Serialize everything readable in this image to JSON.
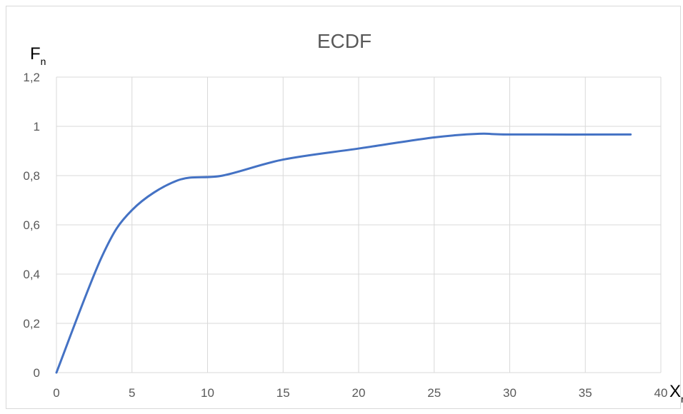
{
  "chart_data": {
    "type": "line",
    "title": "ECDF",
    "ylabel": {
      "main": "F",
      "sub": "n"
    },
    "xlabel": {
      "main": "X",
      "sub": "n"
    },
    "xlim": [
      0,
      40
    ],
    "ylim": [
      0,
      1.2
    ],
    "x_ticks": [
      0,
      5,
      10,
      15,
      20,
      25,
      30,
      35,
      40
    ],
    "x_tick_labels": [
      "0",
      "5",
      "10",
      "15",
      "20",
      "25",
      "30",
      "35",
      "40"
    ],
    "y_ticks": [
      0,
      0.2,
      0.4,
      0.6,
      0.8,
      1.0,
      1.2
    ],
    "y_tick_labels": [
      "0",
      "0,2",
      "0,4",
      "0,6",
      "0,8",
      "1",
      "1,2"
    ],
    "grid": true,
    "series": [
      {
        "color": "#4472c4",
        "smooth": true,
        "x": [
          0,
          3,
          5,
          8,
          11,
          15,
          20,
          25,
          28,
          30,
          38
        ],
        "y": [
          0,
          0.47,
          0.66,
          0.78,
          0.8,
          0.865,
          0.91,
          0.955,
          0.97,
          0.967,
          0.967
        ]
      }
    ]
  }
}
